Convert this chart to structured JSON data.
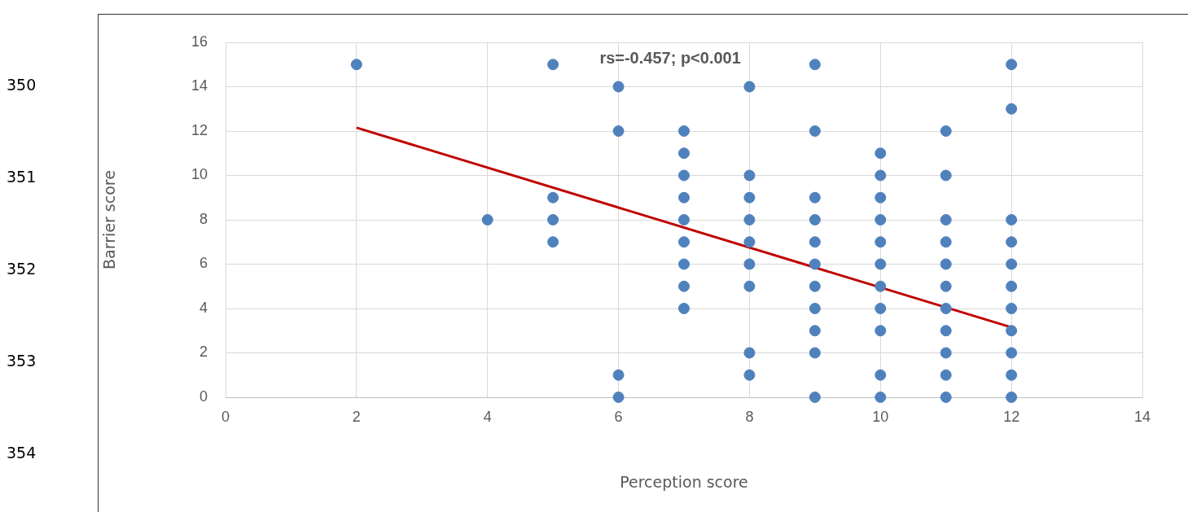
{
  "chart_data": {
    "type": "scatter",
    "xlabel": "Perception score",
    "ylabel": "Barrier score",
    "annotations": [
      "rs=-0.457; p<0.001",
      "350",
      "351",
      "352",
      "353",
      "354"
    ],
    "xlim": [
      0,
      14
    ],
    "xticks": [
      0,
      2,
      4,
      6,
      8,
      10,
      12,
      14
    ],
    "ylim": [
      0,
      16
    ],
    "yticks": [
      0,
      2,
      4,
      6,
      8,
      10,
      12,
      14,
      16
    ],
    "grid": true,
    "legend": false,
    "marker": "circle",
    "series": [
      {
        "type": "scatter",
        "color": "#4f81bd",
        "x": [
          2,
          4,
          5,
          5,
          5,
          5,
          6,
          6,
          6,
          6,
          7,
          7,
          7,
          7,
          7,
          7,
          7,
          7,
          7,
          8,
          8,
          8,
          8,
          8,
          8,
          8,
          8,
          8,
          9,
          9,
          9,
          9,
          9,
          9,
          9,
          9,
          9,
          9,
          9,
          10,
          10,
          10,
          10,
          10,
          10,
          10,
          10,
          10,
          10,
          10,
          11,
          11,
          11,
          11,
          11,
          11,
          11,
          11,
          11,
          11,
          11,
          12,
          12,
          12,
          12,
          12,
          12,
          12,
          12,
          12,
          12,
          12
        ],
        "values": [
          15,
          8,
          15,
          9,
          8,
          7,
          14,
          12,
          1,
          0,
          12,
          11,
          10,
          9,
          8,
          7,
          6,
          5,
          4,
          14,
          10,
          9,
          8,
          7,
          6,
          5,
          2,
          1,
          15,
          12,
          9,
          8,
          7,
          6,
          5,
          4,
          3,
          2,
          0,
          11,
          10,
          9,
          8,
          7,
          6,
          5,
          4,
          3,
          1,
          0,
          12,
          10,
          8,
          7,
          6,
          5,
          4,
          3,
          2,
          1,
          0,
          15,
          13,
          8,
          7,
          6,
          5,
          4,
          3,
          2,
          1,
          0
        ]
      },
      {
        "type": "line",
        "color": "#c00000",
        "x": [
          2,
          12
        ],
        "values": [
          12.15,
          3.15
        ],
        "marker": "none"
      }
    ]
  }
}
